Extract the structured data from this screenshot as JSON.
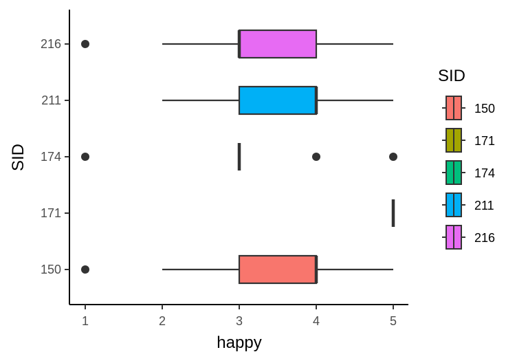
{
  "chart_data": {
    "type": "boxplot",
    "orientation": "horizontal",
    "xlabel": "happy",
    "ylabel": "SID",
    "xlim": [
      0.9,
      5.2
    ],
    "x_ticks": [
      1,
      2,
      3,
      4,
      5
    ],
    "categories": [
      "150",
      "171",
      "174",
      "211",
      "216"
    ],
    "boxes": [
      {
        "category": "150",
        "min": 2,
        "q1": 3,
        "median": 4,
        "q3": 4,
        "max": 5,
        "outliers": [
          1
        ],
        "color": "#F8766D"
      },
      {
        "category": "171",
        "min": 5,
        "q1": 5,
        "median": 5,
        "q3": 5,
        "max": 5,
        "outliers": [],
        "color": "#A3A500"
      },
      {
        "category": "174",
        "min": 3,
        "q1": 3,
        "median": 3,
        "q3": 3,
        "max": 3,
        "outliers": [
          1,
          4,
          5
        ],
        "color": "#00BF7D"
      },
      {
        "category": "211",
        "min": 2,
        "q1": 3,
        "median": 4,
        "q3": 4,
        "max": 5,
        "outliers": [],
        "color": "#00B0F6"
      },
      {
        "category": "216",
        "min": 2,
        "q1": 3,
        "median": 3,
        "q3": 4,
        "max": 5,
        "outliers": [
          1
        ],
        "color": "#E76BF3"
      }
    ],
    "legend": {
      "title": "SID",
      "position": "right",
      "entries": [
        "150",
        "171",
        "174",
        "211",
        "216"
      ]
    },
    "grid": false
  }
}
